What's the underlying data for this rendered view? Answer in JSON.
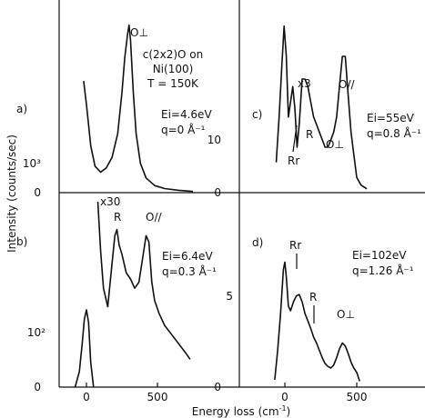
{
  "chart_data": {
    "type": "line",
    "xlabel": "Energy loss (cm",
    "xlabel_sup": "-1",
    "xlabel_end": ")",
    "ylabel": "Intensity (counts/sec)",
    "xticks": [
      "0",
      "500"
    ],
    "panels": [
      {
        "id": "a",
        "panel_label": "a)",
        "title_lines": [
          "c(2x2)O on",
          "Ni(100)",
          "T = 150K"
        ],
        "energy": "Ei=4.6eV",
        "q": "q=0  Å⁻¹",
        "yticks": [
          {
            "label": "0",
            "value": 0
          },
          {
            "label": "10³",
            "value": 1000
          }
        ],
        "ylim": [
          0,
          3000
        ],
        "xlim": [
          -200,
          850
        ],
        "peaks": [
          {
            "label": "O⊥",
            "x": 300,
            "y": 2850
          }
        ],
        "series": [
          {
            "x": [
              -20,
              0,
              30,
              60,
              100,
              140,
              180,
              220,
              250,
              270,
              290,
              300,
              310,
              330,
              350,
              380,
              420,
              480,
              550,
              650,
              750
            ],
            "y": [
              1900,
              1500,
              800,
              450,
              350,
              420,
              600,
              1000,
              1700,
              2300,
              2700,
              2850,
              2600,
              1700,
              1000,
              500,
              250,
              120,
              70,
              40,
              20
            ]
          }
        ]
      },
      {
        "id": "b",
        "panel_label": "b)",
        "energy": "Ei=6.4eV",
        "q": "q=0.3 Å⁻¹",
        "multiplier": "x30",
        "yticks": [
          {
            "label": "0",
            "value": 0
          },
          {
            "label": "10²",
            "value": 100
          }
        ],
        "ylim": [
          0,
          300
        ],
        "xlim": [
          -200,
          850
        ],
        "peaks": [
          {
            "label": "R",
            "x": 210,
            "y": 255
          },
          {
            "label": "O//",
            "x": 440,
            "y": 240
          }
        ],
        "series": [
          {
            "x": [
              -80,
              -50,
              -30,
              -15,
              0,
              15,
              30,
              50
            ],
            "y": [
              0,
              25,
              70,
              110,
              125,
              105,
              40,
              0
            ]
          },
          {
            "x": [
              80,
              100,
              120,
              150,
              180,
              200,
              215,
              230,
              250,
              280,
              310,
              340,
              370,
              400,
              420,
              440,
              460,
              480,
              510,
              550,
              600,
              650,
              700,
              730
            ],
            "y": [
              300,
              220,
              160,
              130,
              200,
              245,
              255,
              230,
              215,
              185,
              175,
              160,
              170,
              215,
              245,
              235,
              170,
              140,
              120,
              100,
              85,
              70,
              55,
              45
            ]
          }
        ]
      },
      {
        "id": "c",
        "panel_label": "c)",
        "energy": "Ei=55eV",
        "q": "q=0.8 Å⁻¹",
        "multiplier": "x3",
        "yticks": [
          {
            "label": "0",
            "value": 0
          },
          {
            "label": "10",
            "value": 10
          }
        ],
        "ylim": [
          0,
          24
        ],
        "xlim": [
          -200,
          850
        ],
        "peaks": [
          {
            "label": "Rr",
            "x": 80,
            "y": 11
          },
          {
            "label": "R",
            "x": 210,
            "y": 13
          },
          {
            "label": "O⊥",
            "x": 330,
            "y": 6.5
          },
          {
            "label": "O//",
            "x": 420,
            "y": 18.5
          }
        ],
        "series": [
          {
            "x": [
              -60,
              -40,
              -20,
              -5,
              10,
              25,
              40,
              55,
              70,
              85,
              100,
              120,
              140,
              160,
              180,
              200,
              220,
              240,
              260,
              280,
              300,
              320,
              340,
              360,
              380,
              400,
              420,
              440,
              460,
              480,
              500,
              530,
              570
            ],
            "y": [
              4,
              10,
              17,
              22,
              18,
              10,
              12,
              14,
              11,
              6,
              9,
              15,
              15,
              14,
              12,
              10,
              9,
              8,
              7,
              6,
              6,
              7,
              8,
              10,
              14,
              18,
              18,
              13,
              8,
              5,
              2,
              1,
              0.5
            ]
          }
        ]
      },
      {
        "id": "d",
        "panel_label": "d)",
        "energy": "Ei=102eV",
        "q": "q=1.26 Å⁻¹",
        "yticks": [
          {
            "label": "0",
            "value": 0
          },
          {
            "label": "5",
            "value": 5
          }
        ],
        "ylim": [
          0,
          11
        ],
        "xlim": [
          -200,
          850
        ],
        "peaks": [
          {
            "label": "Rr",
            "x": 100,
            "y": 6.5
          },
          {
            "label": "R",
            "x": 220,
            "y": 3.3
          },
          {
            "label": "O⊥",
            "x": 400,
            "y": 3.2
          }
        ],
        "series": [
          {
            "x": [
              -70,
              -50,
              -30,
              -10,
              0,
              10,
              25,
              40,
              60,
              80,
              100,
              120,
              140,
              160,
              180,
              200,
              220,
              240,
              260,
              280,
              300,
              320,
              340,
              360,
              380,
              400,
              420,
              440,
              460,
              480,
              500,
              520
            ],
            "y": [
              0.5,
              2.5,
              5,
              8,
              8.5,
              7.5,
              5.5,
              5.2,
              5.8,
              6.2,
              6.3,
              5.8,
              5,
              4.5,
              4,
              3.4,
              3.0,
              2.5,
              2.0,
              1.6,
              1.4,
              1.3,
              1.5,
              2,
              2.6,
              3.0,
              2.8,
              2.3,
              1.7,
              1.3,
              1.0,
              0.4
            ]
          }
        ]
      }
    ]
  }
}
